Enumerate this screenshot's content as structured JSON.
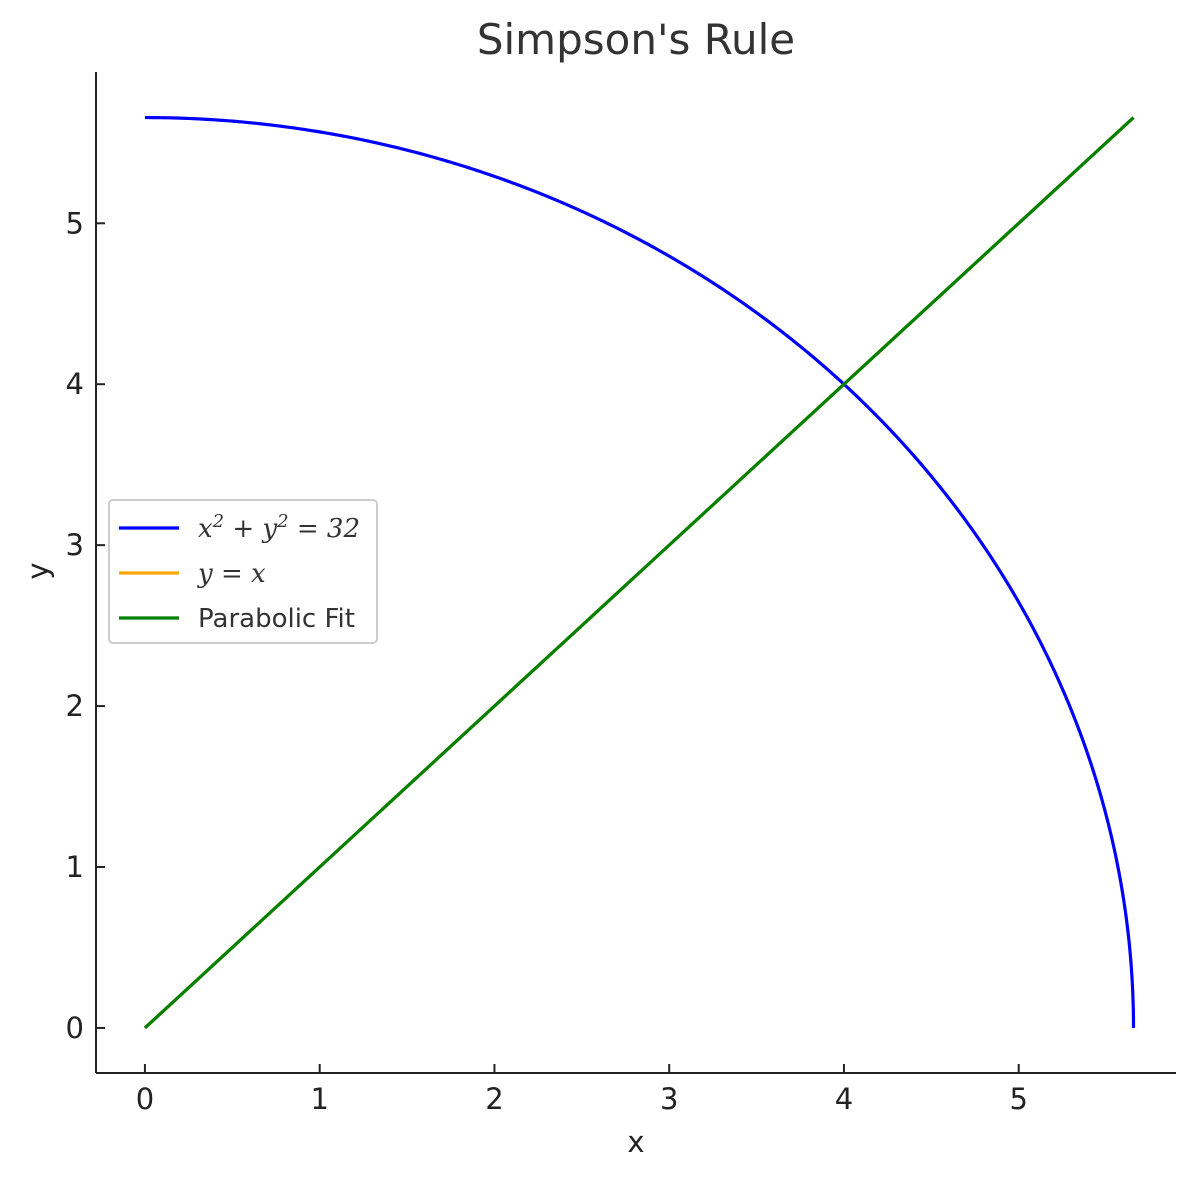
{
  "chart_data": {
    "type": "line",
    "title": "Simpson's Rule",
    "xlabel": "x",
    "ylabel": "y",
    "xlim": [
      -0.28,
      5.9
    ],
    "ylim": [
      -0.28,
      5.94
    ],
    "xticks": [
      0,
      1,
      2,
      3,
      4,
      5
    ],
    "yticks": [
      0,
      1,
      2,
      3,
      4,
      5
    ],
    "grid": false,
    "legend_position": "center-left",
    "series": [
      {
        "name": "x² + y² = 32",
        "legend_html": "x<tspan dy='-10' font-size='18'>2</tspan><tspan dy='10'> + y</tspan><tspan dy='-10' font-size='18'>2</tspan><tspan dy='10'> = 32</tspan>",
        "color": "#0000ff",
        "kind": "circle",
        "radius_squared": 32,
        "x_range": [
          0,
          5.657
        ]
      },
      {
        "name": "y = x",
        "color": "#ffa500",
        "kind": "line",
        "x": [
          0,
          5.657
        ],
        "y": [
          0,
          5.657
        ]
      },
      {
        "name": "Parabolic Fit",
        "color": "#008000",
        "kind": "line",
        "x": [
          0,
          5.657
        ],
        "y": [
          0,
          5.657
        ]
      }
    ]
  }
}
